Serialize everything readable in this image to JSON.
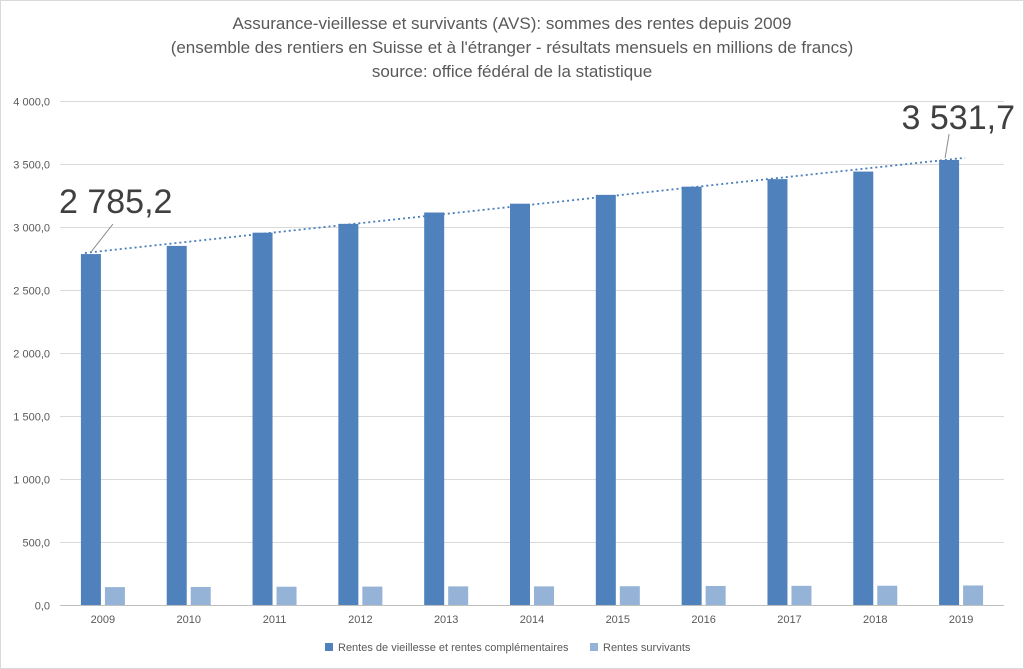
{
  "chart_data": {
    "type": "bar",
    "title_lines": [
      "Assurance-vieillesse et survivants (AVS): sommes des rentes depuis 2009",
      "(ensemble des rentiers en Suisse et à l'étranger - résultats mensuels en millions de francs)",
      "source: office fédéral de la statistique"
    ],
    "categories": [
      "2009",
      "2010",
      "2011",
      "2012",
      "2013",
      "2014",
      "2015",
      "2016",
      "2017",
      "2018",
      "2019"
    ],
    "series": [
      {
        "name": "Rentes de vieillesse et rentes complémentaires",
        "color": "#4f81bd",
        "values": [
          2785.2,
          2850,
          2955,
          3025,
          3115,
          3185,
          3255,
          3320,
          3380,
          3440,
          3531.7
        ]
      },
      {
        "name": "Rentes survivants",
        "color": "#95b3d7",
        "values": [
          142,
          143,
          145,
          146,
          148,
          148,
          149,
          151,
          152,
          153,
          155
        ]
      }
    ],
    "ylim": [
      0,
      4000
    ],
    "y_ticks": [
      0,
      500,
      1000,
      1500,
      2000,
      2500,
      3000,
      3500,
      4000
    ],
    "y_tick_labels": [
      "0,0",
      "500,0",
      "1 000,0",
      "1 500,0",
      "2 000,0",
      "2 500,0",
      "3 000,0",
      "3 500,0",
      "4 000,0"
    ],
    "gridlines": true,
    "legend_position": "bottom",
    "trendline": {
      "series": "Rentes de vieillesse et rentes complémentaires",
      "style": "dotted",
      "color": "#4a7ebb"
    },
    "annotations": [
      {
        "text": "2 785,2",
        "category": "2009",
        "value": 2785.2
      },
      {
        "text": "3 531,7",
        "category": "2019",
        "value": 3531.7
      }
    ]
  }
}
